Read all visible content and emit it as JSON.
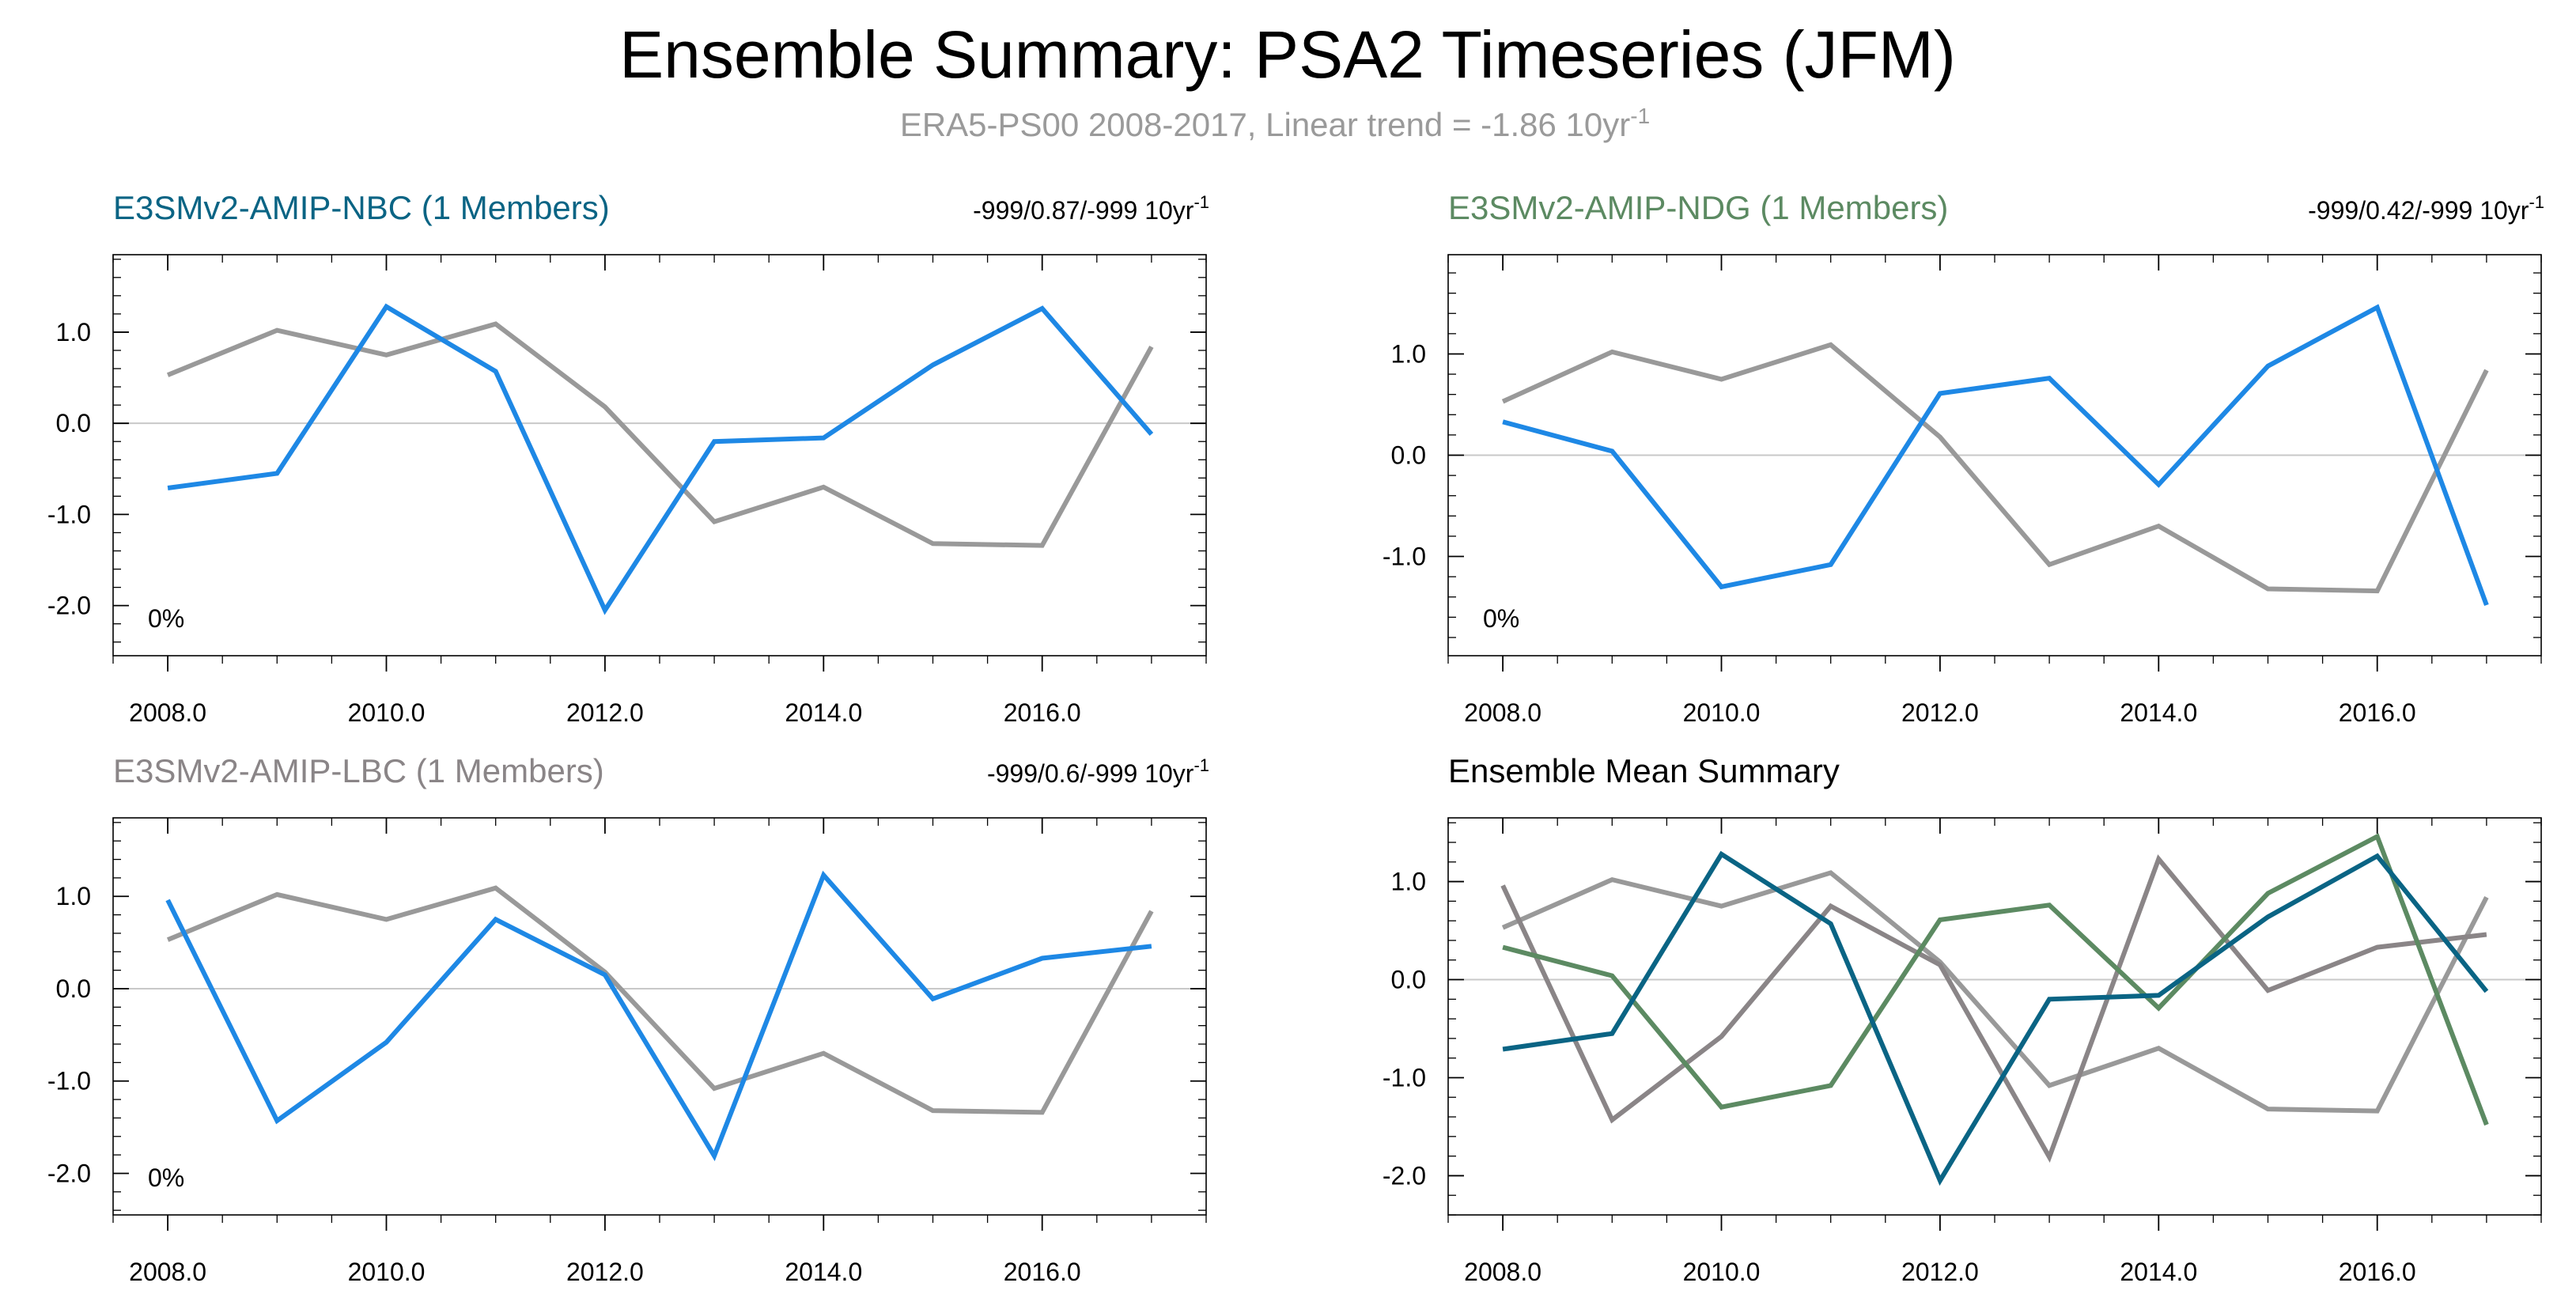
{
  "title": "Ensemble Summary: PSA2 Timeseries (JFM)",
  "subtitle": {
    "text": "ERA5-PS00 2008-2017, Linear trend = -1.86 10yr",
    "sup": "-1"
  },
  "colors": {
    "obs": "#999999",
    "model": "#1e88e5",
    "nbc": "#0a6484",
    "ndg": "#5c8a62",
    "lbc": "#8a8587",
    "zeroline": "#c8c8c8",
    "axis": "#000000",
    "subtitle": "#9a9a9a"
  },
  "chart_data": [
    {
      "id": "nbc",
      "type": "line",
      "title": "E3SMv2-AMIP-NBC (1 Members)",
      "title_color": "#0a6484",
      "trend": {
        "text": "-999/0.87/-999 10yr",
        "sup": "-1"
      },
      "pct": "0%",
      "x": [
        2008,
        2009,
        2010,
        2011,
        2012,
        2013,
        2014,
        2015,
        2016,
        2017
      ],
      "xticks": [
        "2008.0",
        "2010.0",
        "2012.0",
        "2014.0",
        "2016.0"
      ],
      "ylim": [
        -2.55,
        1.85
      ],
      "yticks": [
        "1.0",
        "0.0",
        "-1.0",
        "-2.0"
      ],
      "series": [
        {
          "name": "ERA5-PS00",
          "color": "#999999",
          "values": [
            0.53,
            1.02,
            0.75,
            1.09,
            0.18,
            -1.08,
            -0.7,
            -1.32,
            -1.34,
            0.84
          ]
        },
        {
          "name": "E3SMv2-AMIP-NBC",
          "color": "#1e88e5",
          "values": [
            -0.71,
            -0.55,
            1.28,
            0.57,
            -2.05,
            -0.2,
            -0.16,
            0.64,
            1.26,
            -0.12
          ]
        }
      ]
    },
    {
      "id": "ndg",
      "type": "line",
      "title": "E3SMv2-AMIP-NDG (1 Members)",
      "title_color": "#5c8a62",
      "trend": {
        "text": "-999/0.42/-999 10yr",
        "sup": "-1"
      },
      "pct": "0%",
      "x": [
        2008,
        2009,
        2010,
        2011,
        2012,
        2013,
        2014,
        2015,
        2016,
        2017
      ],
      "xticks": [
        "2008.0",
        "2010.0",
        "2012.0",
        "2014.0",
        "2016.0"
      ],
      "ylim": [
        -1.98,
        1.98
      ],
      "yticks": [
        "1.0",
        "0.0",
        "-1.0"
      ],
      "series": [
        {
          "name": "ERA5-PS00",
          "color": "#999999",
          "values": [
            0.53,
            1.02,
            0.75,
            1.09,
            0.18,
            -1.08,
            -0.7,
            -1.32,
            -1.34,
            0.84
          ]
        },
        {
          "name": "E3SMv2-AMIP-NDG",
          "color": "#1e88e5",
          "values": [
            0.33,
            0.04,
            -1.3,
            -1.08,
            0.61,
            0.76,
            -0.29,
            0.88,
            1.46,
            -1.48
          ]
        }
      ]
    },
    {
      "id": "lbc",
      "type": "line",
      "title": "E3SMv2-AMIP-LBC (1 Members)",
      "title_color": "#8a8587",
      "trend": {
        "text": "-999/0.6/-999 10yr",
        "sup": "-1"
      },
      "pct": "0%",
      "x": [
        2008,
        2009,
        2010,
        2011,
        2012,
        2013,
        2014,
        2015,
        2016,
        2017
      ],
      "xticks": [
        "2008.0",
        "2010.0",
        "2012.0",
        "2014.0",
        "2016.0"
      ],
      "ylim": [
        -2.45,
        1.85
      ],
      "yticks": [
        "1.0",
        "0.0",
        "-1.0",
        "-2.0"
      ],
      "series": [
        {
          "name": "ERA5-PS00",
          "color": "#999999",
          "values": [
            0.53,
            1.02,
            0.75,
            1.09,
            0.18,
            -1.08,
            -0.7,
            -1.32,
            -1.34,
            0.84
          ]
        },
        {
          "name": "E3SMv2-AMIP-LBC",
          "color": "#1e88e5",
          "values": [
            0.96,
            -1.43,
            -0.58,
            0.75,
            0.15,
            -1.81,
            1.23,
            -0.11,
            0.33,
            0.46
          ]
        }
      ]
    },
    {
      "id": "mean",
      "type": "line",
      "title": "Ensemble Mean Summary",
      "title_color": "#000000",
      "trend": null,
      "pct": null,
      "x": [
        2008,
        2009,
        2010,
        2011,
        2012,
        2013,
        2014,
        2015,
        2016,
        2017
      ],
      "xticks": [
        "2008.0",
        "2010.0",
        "2012.0",
        "2014.0",
        "2016.0"
      ],
      "ylim": [
        -2.4,
        1.65
      ],
      "yticks": [
        "1.0",
        "0.0",
        "-1.0",
        "-2.0"
      ],
      "series": [
        {
          "name": "ERA5-PS00",
          "color": "#999999",
          "values": [
            0.53,
            1.02,
            0.75,
            1.09,
            0.18,
            -1.08,
            -0.7,
            -1.32,
            -1.34,
            0.84
          ]
        },
        {
          "name": "E3SMv2-AMIP-LBC",
          "color": "#8a8587",
          "values": [
            0.96,
            -1.43,
            -0.58,
            0.75,
            0.15,
            -1.81,
            1.23,
            -0.11,
            0.33,
            0.46
          ]
        },
        {
          "name": "E3SMv2-AMIP-NDG",
          "color": "#5c8a62",
          "values": [
            0.33,
            0.04,
            -1.3,
            -1.08,
            0.61,
            0.76,
            -0.29,
            0.88,
            1.46,
            -1.48
          ]
        },
        {
          "name": "E3SMv2-AMIP-NBC",
          "color": "#0a6484",
          "values": [
            -0.71,
            -0.55,
            1.28,
            0.57,
            -2.05,
            -0.2,
            -0.16,
            0.64,
            1.26,
            -0.12
          ]
        }
      ]
    }
  ]
}
